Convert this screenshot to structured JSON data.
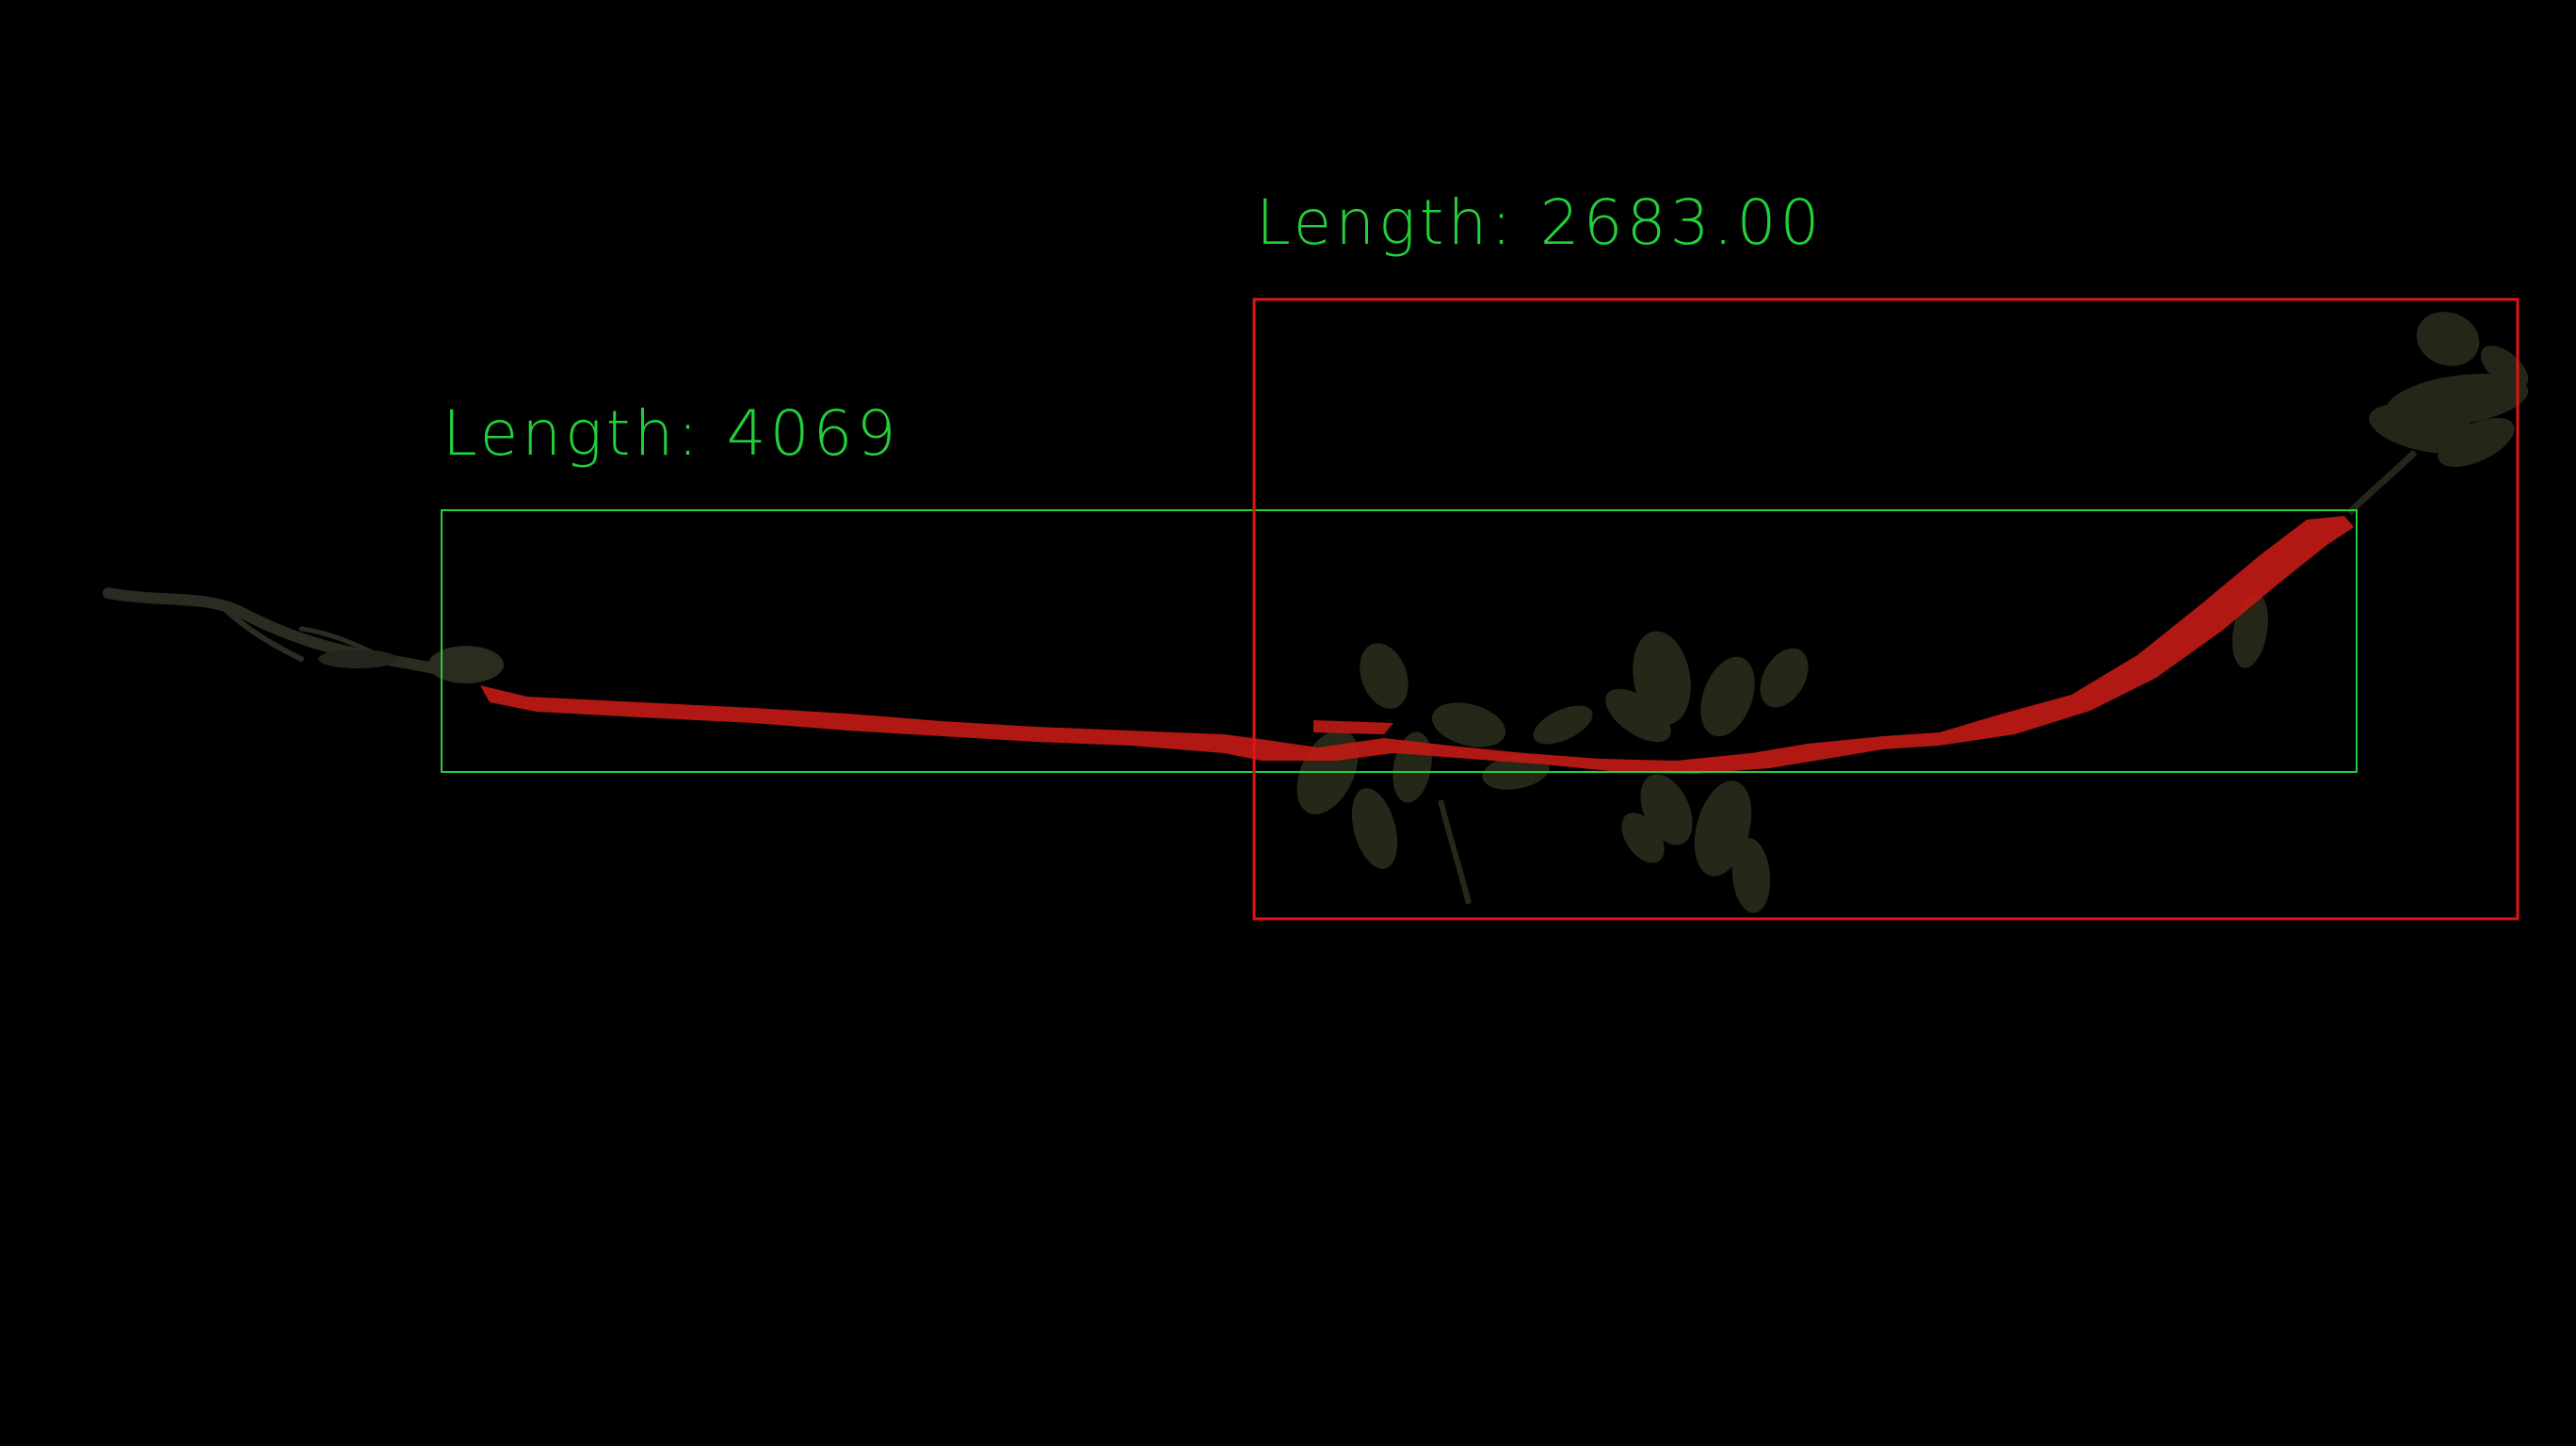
{
  "image": {
    "subject": "plant-seedling",
    "background_color": "#000000"
  },
  "overlays": {
    "primary_measurement": {
      "label_key": "Length:",
      "label_value": "4069",
      "box_color": "#22d03a",
      "text_color": "#22d03a"
    },
    "secondary_measurement": {
      "label_key": "Length:",
      "label_value": "2683.00",
      "box_color": "#e01515",
      "text_color": "#22d03a"
    },
    "root_mask": {
      "color": "#c01a16"
    },
    "foliage": {
      "color": "#2f3320"
    }
  }
}
